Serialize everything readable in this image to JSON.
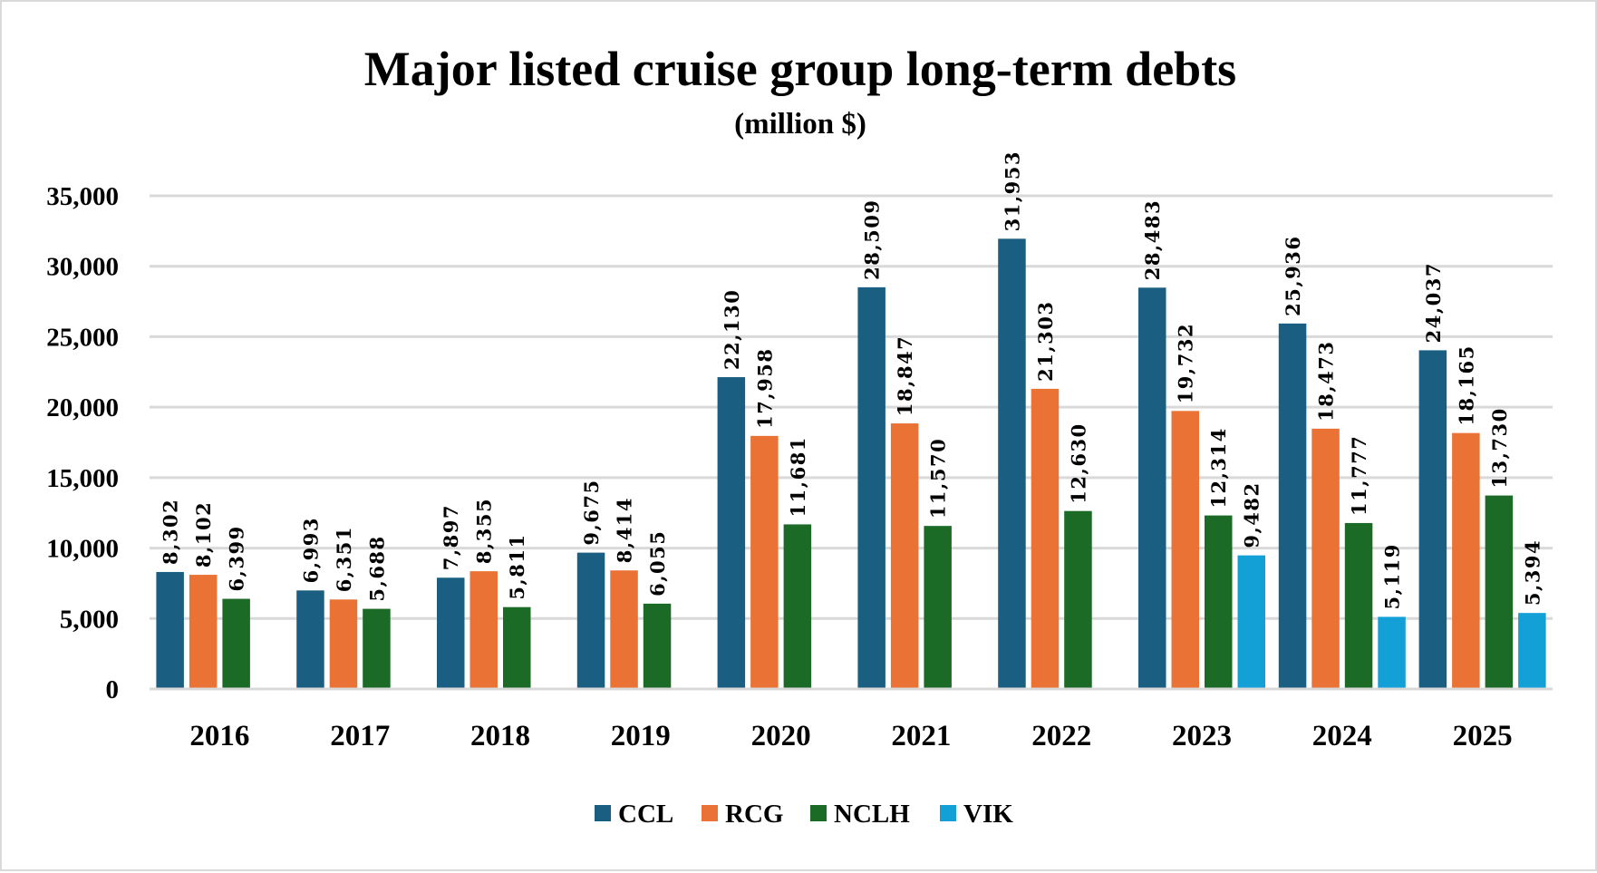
{
  "chart_data": {
    "type": "bar",
    "title": "Major listed cruise group long-term debts",
    "subtitle": "(million $)",
    "xlabel": "",
    "ylabel": "",
    "ylim": [
      0,
      35000
    ],
    "yticks": [
      0,
      5000,
      10000,
      15000,
      20000,
      25000,
      30000,
      35000
    ],
    "ytick_labels": [
      "0",
      "5,000",
      "10,000",
      "15,000",
      "20,000",
      "25,000",
      "30,000",
      "35,000"
    ],
    "grid": true,
    "legend_position": "bottom",
    "categories": [
      "2016",
      "2017",
      "2018",
      "2019",
      "2020",
      "2021",
      "2022",
      "2023",
      "2024",
      "2025"
    ],
    "series": [
      {
        "name": "CCL",
        "color": "#1a5f82",
        "values": [
          8302,
          6993,
          7897,
          9675,
          22130,
          28509,
          31953,
          28483,
          25936,
          24037
        ]
      },
      {
        "name": "RCG",
        "color": "#e97234",
        "values": [
          8102,
          6351,
          8355,
          8414,
          17958,
          18847,
          21303,
          19732,
          18473,
          18165
        ]
      },
      {
        "name": "NCLH",
        "color": "#1b6b27",
        "values": [
          6399,
          5688,
          5811,
          6055,
          11681,
          11570,
          12630,
          12314,
          11777,
          13730
        ]
      },
      {
        "name": "VIK",
        "color": "#13a0d6",
        "values": [
          null,
          null,
          null,
          null,
          null,
          null,
          null,
          9482,
          5119,
          5394
        ]
      }
    ]
  }
}
